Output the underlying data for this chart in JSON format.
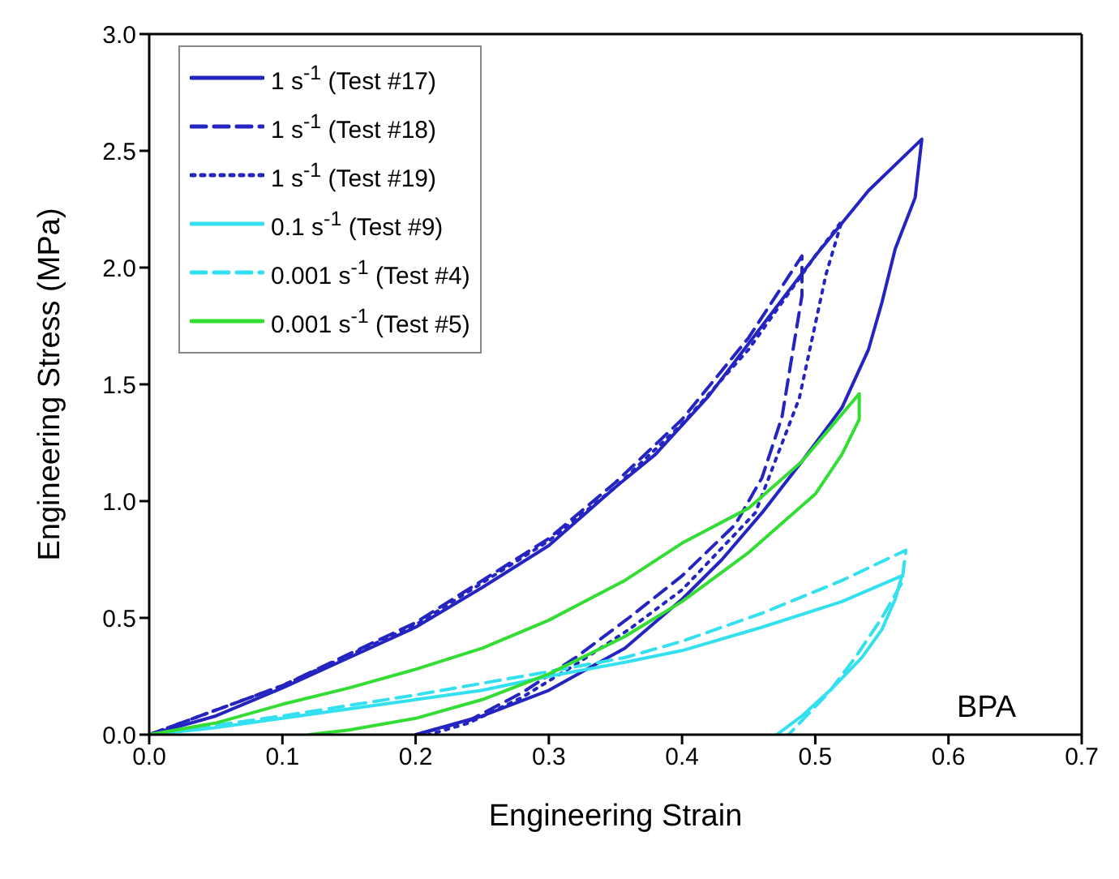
{
  "chart_data": {
    "type": "line",
    "xlabel": "Engineering Strain",
    "ylabel": "Engineering Stress (MPa)",
    "xlim": [
      0,
      0.7
    ],
    "xticks": [
      {
        "value": 0,
        "label": "0.0"
      },
      0.1,
      0.2,
      0.3,
      0.4,
      0.5,
      0.6,
      0.7
    ],
    "ylim": [
      0,
      3
    ],
    "yticks": [
      {
        "value": 0,
        "label": "0.0"
      },
      0.5,
      {
        "value": 1,
        "label": "1.0"
      },
      1.5,
      {
        "value": 2,
        "label": "2.0"
      },
      2.5,
      {
        "value": 3,
        "label": "3.0"
      }
    ],
    "legend": "top left",
    "marker": "none",
    "annotations": [
      "BPA"
    ],
    "series": [
      {
        "name": "1 s$^{-1}$ (Test #17)",
        "color": "#2424c0",
        "line_style": "solid",
        "x": [
          0,
          0.05,
          0.1,
          0.15,
          0.2,
          0.25,
          0.3,
          0.35,
          0.38,
          0.42,
          0.46,
          0.5,
          0.54,
          0.58,
          0.575,
          0.56,
          0.55,
          0.54,
          0.52,
          0.49,
          0.46,
          0.43,
          0.4,
          0.357,
          0.3,
          0.25,
          0.2
        ],
        "values": [
          0,
          0.08,
          0.2,
          0.33,
          0.46,
          0.63,
          0.81,
          1.06,
          1.2,
          1.45,
          1.75,
          2.05,
          2.33,
          2.55,
          2.3,
          2.08,
          1.85,
          1.65,
          1.4,
          1.17,
          0.95,
          0.75,
          0.58,
          0.37,
          0.19,
          0.08,
          0
        ]
      },
      {
        "name": "1 s$^{-1}$ (Test #18)",
        "color": "#2424c0",
        "line_style": "dashed",
        "x": [
          0,
          0.1,
          0.2,
          0.3,
          0.35,
          0.4,
          0.45,
          0.49,
          0.49,
          0.475,
          0.46,
          0.44,
          0.4,
          0.36,
          0.32,
          0.28,
          0.24,
          0.2
        ],
        "values": [
          0,
          0.21,
          0.48,
          0.84,
          1.08,
          1.35,
          1.7,
          2.05,
          1.88,
          1.36,
          1.1,
          0.9,
          0.68,
          0.5,
          0.33,
          0.18,
          0.06,
          0
        ]
      },
      {
        "name": "1 s$^{-1}$ (Test #19)",
        "color": "#2424c0",
        "line_style": "dotted",
        "x": [
          0,
          0.1,
          0.2,
          0.3,
          0.35,
          0.4,
          0.45,
          0.5,
          0.52,
          0.508,
          0.488,
          0.455,
          0.4,
          0.36,
          0.32,
          0.28,
          0.24,
          0.21
        ],
        "values": [
          0,
          0.21,
          0.47,
          0.83,
          1.06,
          1.33,
          1.65,
          2.05,
          2.2,
          1.97,
          1.44,
          0.95,
          0.62,
          0.45,
          0.3,
          0.16,
          0.05,
          0
        ]
      },
      {
        "name": "0.1 s$^{-1}$ (Test #9)",
        "color": "#33e0f0",
        "line_style": "solid",
        "x": [
          0,
          0.05,
          0.1,
          0.15,
          0.2,
          0.25,
          0.3,
          0.357,
          0.4,
          0.46,
          0.52,
          0.565,
          0.56,
          0.55,
          0.535,
          0.513,
          0.49,
          0.471
        ],
        "values": [
          0,
          0.03,
          0.07,
          0.11,
          0.15,
          0.19,
          0.25,
          0.31,
          0.36,
          0.46,
          0.57,
          0.68,
          0.58,
          0.45,
          0.33,
          0.2,
          0.08,
          0
        ]
      },
      {
        "name": "0.001 s$^{-1}$ (Test #4)",
        "color": "#33e0f0",
        "line_style": "dashed",
        "x": [
          0,
          0.1,
          0.2,
          0.3,
          0.357,
          0.4,
          0.46,
          0.52,
          0.568,
          0.565,
          0.55,
          0.53,
          0.51,
          0.49,
          0.48
        ],
        "values": [
          0,
          0.08,
          0.17,
          0.27,
          0.33,
          0.4,
          0.52,
          0.66,
          0.79,
          0.65,
          0.5,
          0.33,
          0.18,
          0.06,
          0
        ]
      },
      {
        "name": "0.001 s$^{-1}$ (Test #5)",
        "color": "#33dd33",
        "line_style": "solid",
        "x": [
          0,
          0.05,
          0.1,
          0.15,
          0.2,
          0.25,
          0.3,
          0.357,
          0.4,
          0.45,
          0.49,
          0.533,
          0.533,
          0.52,
          0.5,
          0.45,
          0.4,
          0.357,
          0.3,
          0.25,
          0.2,
          0.15,
          0.12
        ],
        "values": [
          0,
          0.05,
          0.13,
          0.2,
          0.28,
          0.37,
          0.49,
          0.66,
          0.82,
          0.97,
          1.17,
          1.46,
          1.35,
          1.2,
          1.03,
          0.78,
          0.57,
          0.42,
          0.26,
          0.15,
          0.07,
          0.02,
          0
        ]
      }
    ]
  }
}
